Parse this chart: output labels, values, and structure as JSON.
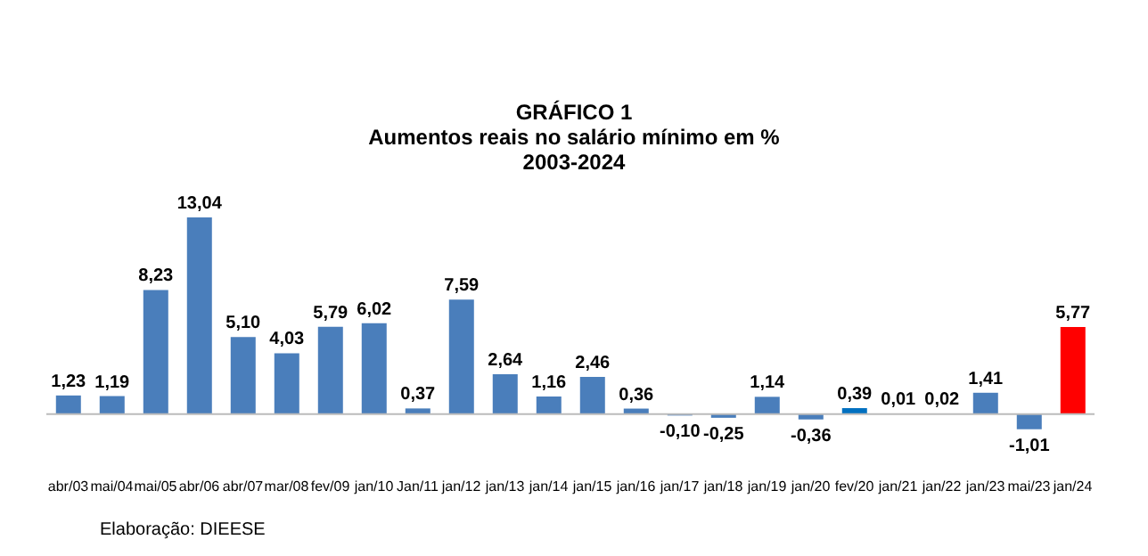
{
  "chart_data": {
    "type": "bar",
    "title": "GRÁFICO 1",
    "subtitle": "Aumentos reais no salário mínimo em %\n2003-2024",
    "categories": [
      "abr/03",
      "mai/04",
      "mai/05",
      "abr/06",
      "abr/07",
      "mar/08",
      "fev/09",
      "jan/10",
      "Jan/11",
      "jan/12",
      "jan/13",
      "jan/14",
      "jan/15",
      "jan/16",
      "jan/17",
      "jan/18",
      "jan/19",
      "jan/20",
      "fev/20",
      "jan/21",
      "jan/22",
      "jan/23",
      "mai/23",
      "jan/24"
    ],
    "values": [
      1.23,
      1.19,
      8.23,
      13.04,
      5.1,
      4.03,
      5.79,
      6.02,
      0.37,
      7.59,
      2.64,
      1.16,
      2.46,
      0.36,
      -0.1,
      -0.25,
      1.14,
      -0.36,
      0.39,
      0.01,
      0.02,
      1.41,
      -1.01,
      5.77
    ],
    "value_labels": [
      "1,23",
      "1,19",
      "8,23",
      "13,04",
      "5,10",
      "4,03",
      "5,79",
      "6,02",
      "0,37",
      "7,59",
      "2,64",
      "1,16",
      "2,46",
      "0,36",
      "-0,10",
      "-0,25",
      "1,14",
      "-0,36",
      "0,39",
      "0,01",
      "0,02",
      "1,41",
      "-1,01",
      "5,77"
    ],
    "colors": [
      "#4a7ebb",
      "#4a7ebb",
      "#4a7ebb",
      "#4a7ebb",
      "#4a7ebb",
      "#4a7ebb",
      "#4a7ebb",
      "#4a7ebb",
      "#4a7ebb",
      "#4a7ebb",
      "#4a7ebb",
      "#4a7ebb",
      "#4a7ebb",
      "#4a7ebb",
      "#4a7ebb",
      "#4a7ebb",
      "#4a7ebb",
      "#4a7ebb",
      "#0070c0",
      "#4a7ebb",
      "#4a7ebb",
      "#4a7ebb",
      "#4a7ebb",
      "#ff0000"
    ],
    "annotations": [
      "Elaboração: DIEESE"
    ]
  }
}
